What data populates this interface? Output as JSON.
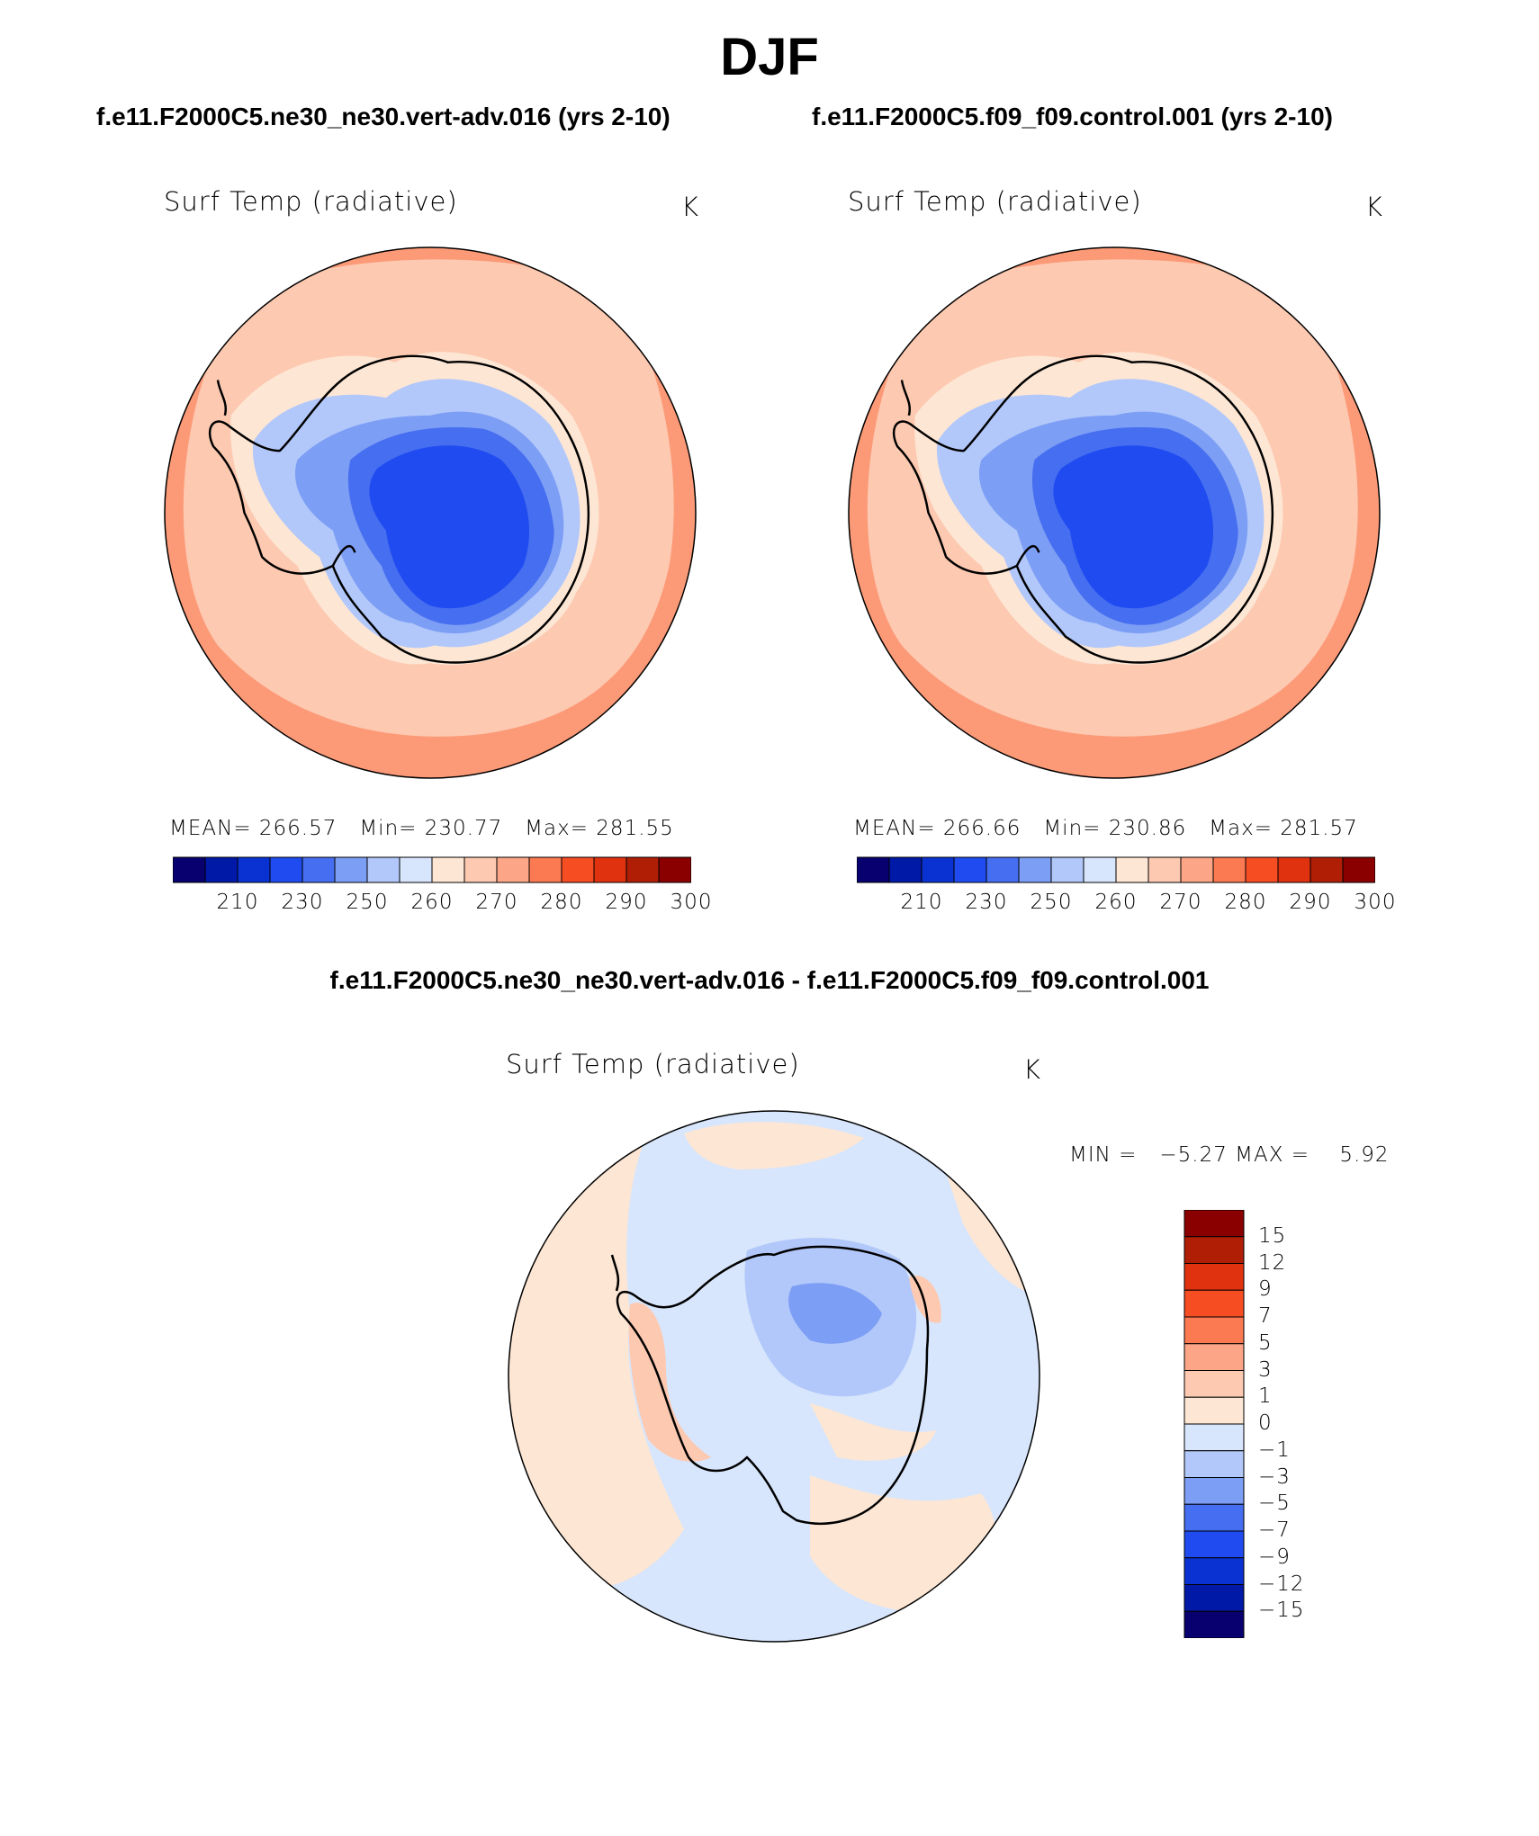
{
  "figure": {
    "title": "DJF",
    "diff_title": "f.e11.F2000C5.ne30_ne30.vert-adv.016 - f.e11.F2000C5.f09_f09.control.001"
  },
  "panels": [
    {
      "case_title": "f.e11.F2000C5.ne30_ne30.vert-adv.016 (yrs 2-10)",
      "variable": "Surf Temp (radiative)",
      "units": "K",
      "stats": {
        "mean_label": "MEAN=",
        "mean": "266.57",
        "min_label": "Min=",
        "min": "230.77",
        "max_label": "Max=",
        "max": "281.55"
      }
    },
    {
      "case_title": "f.e11.F2000C5.f09_f09.control.001 (yrs 2-10)",
      "variable": "Surf Temp (radiative)",
      "units": "K",
      "stats": {
        "mean_label": "MEAN=",
        "mean": "266.66",
        "min_label": "Min=",
        "min": "230.86",
        "max_label": "Max=",
        "max": "281.57"
      }
    },
    {
      "variable": "Surf Temp (radiative)",
      "units": "K",
      "minmax": {
        "min_label": "MIN =",
        "min": "−5.27",
        "max_label": "MAX =",
        "max": "5.92"
      }
    }
  ],
  "colorbar_abs": {
    "colors": [
      "#08006e",
      "#0019a6",
      "#0a32d2",
      "#1f4bf0",
      "#466ef0",
      "#7d9ef5",
      "#b2c8fa",
      "#d7e6fc",
      "#fde6d4",
      "#fdc9b1",
      "#fca687",
      "#fc7a52",
      "#f74d23",
      "#e13210",
      "#b01e06",
      "#8a0000"
    ],
    "tick_labels": [
      "210",
      "230",
      "250",
      "260",
      "270",
      "280",
      "290",
      "300"
    ]
  },
  "colorbar_diff": {
    "colors": [
      "#08006e",
      "#0019a6",
      "#0a32d2",
      "#1f4bf0",
      "#466ef0",
      "#7d9ef5",
      "#b2c8fa",
      "#d7e6fc",
      "#fde6d4",
      "#fdc9b1",
      "#fca687",
      "#fc7a52",
      "#f74d23",
      "#e13210",
      "#b01e06",
      "#8a0000"
    ],
    "tick_labels": [
      "15",
      "12",
      "9",
      "7",
      "5",
      "3",
      "1",
      "0",
      "−1",
      "−3",
      "−5",
      "−7",
      "−9",
      "−12",
      "−15"
    ]
  },
  "map_palette": {
    "outer_warm": "#fc9a78",
    "mid_ocean": "#fdc9b1",
    "seaice_edge": "#fde6d4",
    "ice_light": "#b2c8fa",
    "ice_mid": "#7d9ef5",
    "ice_blue": "#466ef0",
    "ice_deep": "#1f4bf0",
    "edge_hot": "#fc7a52",
    "diff_ocean": "#d7e6fc",
    "diff_warm": "#fde6d4",
    "diff_warm2": "#fdc9b1",
    "diff_cool": "#b2c8fa",
    "diff_cool2": "#7d9ef5"
  }
}
